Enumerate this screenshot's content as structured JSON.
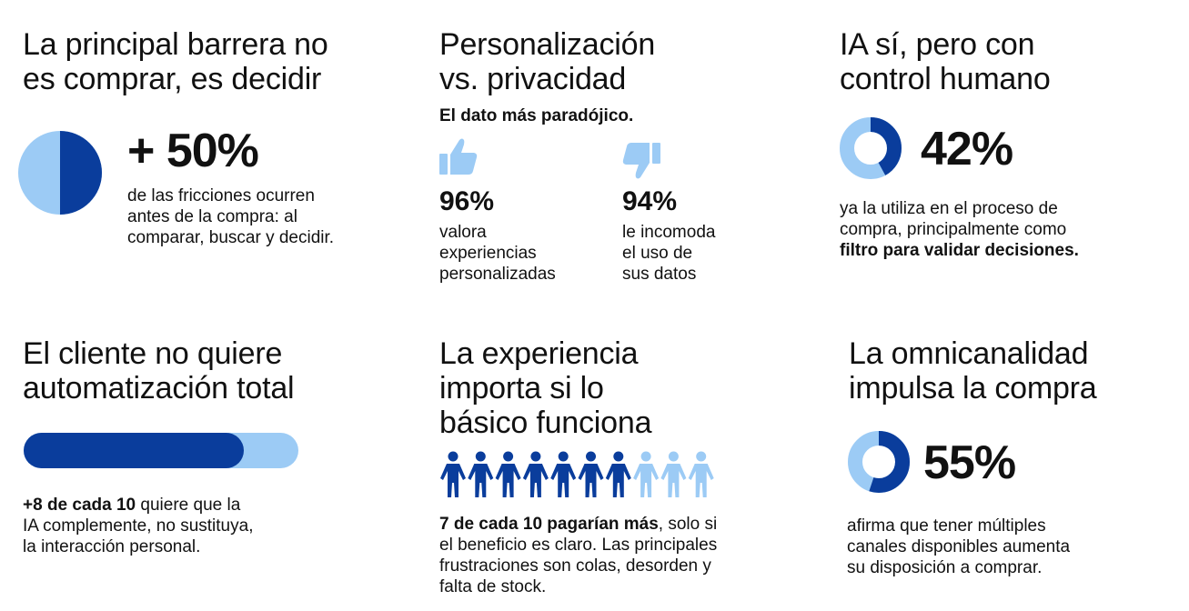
{
  "colors": {
    "dark_blue": "#0a3d9c",
    "light_blue": "#9ccbf5",
    "text": "#111111"
  },
  "panel1": {
    "title_line1": "La principal barrera no",
    "title_line2": "es comprar, es decidir",
    "stat": "+ 50%",
    "stat_fraction": 0.5,
    "desc_line1": "de las fricciones ocurren",
    "desc_line2": "antes de la compra: al",
    "desc_line3": "comparar, buscar y decidir."
  },
  "panel2": {
    "title_line1": "Personalización",
    "title_line2": "vs. privacidad",
    "subtitle": "El dato más paradójico.",
    "left": {
      "icon": "thumbs-up-icon",
      "stat": "96%",
      "line1": "valora",
      "line2": "experiencias",
      "line3": "personalizadas"
    },
    "right": {
      "icon": "thumbs-down-icon",
      "stat": "94%",
      "line1": "le incomoda",
      "line2": "el uso de",
      "line3": "sus datos"
    }
  },
  "panel3": {
    "title_line1": "IA sí, pero con",
    "title_line2": "control humano",
    "stat": "42%",
    "stat_fraction": 0.42,
    "desc_line1": "ya la utiliza en el proceso de",
    "desc_line2": "compra, principalmente como",
    "desc_bold": "filtro para validar decisiones."
  },
  "panel4": {
    "title_line1": "El cliente no quiere",
    "title_line2": "automatización total",
    "bar_fraction": 0.8,
    "desc_bold": "+8 de cada 10",
    "desc_rest": " quiere que la",
    "desc_line2": "IA complemente, no sustituya,",
    "desc_line3": "la interacción personal."
  },
  "panel5": {
    "title_line1": "La experiencia",
    "title_line2": "importa si lo",
    "title_line3": "básico funciona",
    "people_total": 10,
    "people_highlighted": 7,
    "desc_bold": "7 de cada 10 pagarían más",
    "desc_rest": ", solo si",
    "desc_line2": "el beneficio es claro. Las principales",
    "desc_line3": "frustraciones son colas, desorden y",
    "desc_line4": "falta de stock."
  },
  "panel6": {
    "title_line1": "La omnicanalidad",
    "title_line2": "impulsa la compra",
    "stat": "55%",
    "stat_fraction": 0.55,
    "desc_line1": "afirma que tener múltiples",
    "desc_line2": "canales disponibles aumenta",
    "desc_line3": "su disposición a comprar."
  }
}
